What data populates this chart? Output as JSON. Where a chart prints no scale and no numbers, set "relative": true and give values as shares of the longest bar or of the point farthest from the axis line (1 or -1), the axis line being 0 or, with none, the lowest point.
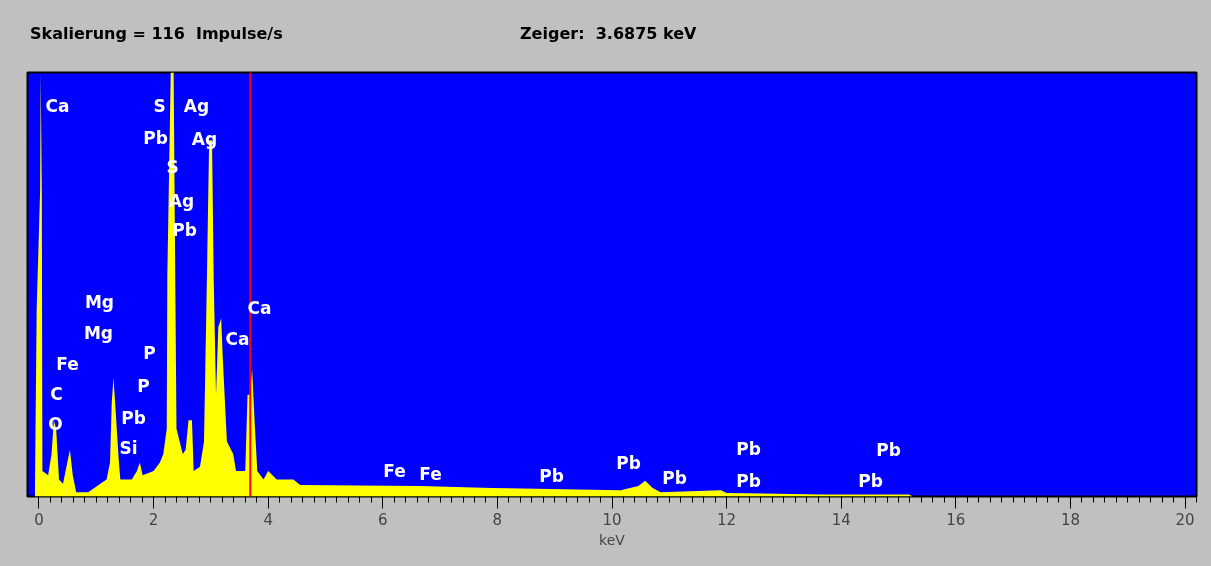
{
  "chart_data": {
    "type": "area",
    "relative": true,
    "xlabel": "keV",
    "xlim": [
      -0.2,
      20.2
    ],
    "xticks": [
      0,
      2,
      4,
      6,
      8,
      10,
      12,
      14,
      16,
      18,
      20
    ],
    "grid": false,
    "series": [
      {
        "color": "#ffff00",
        "x": [
          -0.07,
          -0.04,
          0.02,
          0.03,
          0.05,
          0.06,
          0.16,
          0.22,
          0.26,
          0.3,
          0.35,
          0.42,
          0.51,
          0.54,
          0.59,
          0.65,
          0.86,
          1.07,
          1.18,
          1.24,
          1.27,
          1.3,
          1.33,
          1.39,
          1.42,
          1.62,
          1.71,
          1.76,
          1.81,
          2.0,
          2.11,
          2.17,
          2.23,
          2.24,
          2.3,
          2.35,
          2.38,
          2.4,
          2.51,
          2.56,
          2.61,
          2.67,
          2.7,
          2.81,
          2.88,
          2.93,
          2.97,
          3.02,
          3.05,
          3.09,
          3.13,
          3.18,
          3.21,
          3.28,
          3.39,
          3.44,
          3.6,
          3.64,
          3.68,
          3.72,
          3.77,
          3.81,
          3.92,
          4.0,
          4.15,
          4.44,
          4.56,
          6.65,
          7.91,
          10.15,
          10.46,
          10.58,
          10.71,
          10.85,
          11.9,
          12.0,
          13.64,
          15.18,
          15.25,
          20.2
        ],
        "values": [
          0.02,
          0.44,
          0.72,
          1.0,
          0.72,
          0.06,
          0.05,
          0.1,
          0.18,
          0.16,
          0.04,
          0.03,
          0.09,
          0.11,
          0.05,
          0.01,
          0.01,
          0.03,
          0.04,
          0.08,
          0.22,
          0.28,
          0.22,
          0.09,
          0.04,
          0.04,
          0.06,
          0.08,
          0.05,
          0.06,
          0.08,
          0.1,
          0.16,
          0.52,
          1.0,
          1.0,
          0.49,
          0.16,
          0.1,
          0.11,
          0.18,
          0.18,
          0.06,
          0.07,
          0.13,
          0.51,
          0.84,
          0.84,
          0.51,
          0.24,
          0.4,
          0.42,
          0.32,
          0.13,
          0.1,
          0.06,
          0.06,
          0.24,
          0.24,
          0.3,
          0.16,
          0.06,
          0.04,
          0.06,
          0.04,
          0.04,
          0.027,
          0.025,
          0.02,
          0.015,
          0.025,
          0.037,
          0.02,
          0.01,
          0.015,
          0.008,
          0.005,
          0.005,
          0.0,
          0.0
        ]
      }
    ],
    "ref_lines": [
      {
        "axis": "x",
        "value": 3.6875,
        "color": "#ff0000"
      }
    ],
    "annotations": [
      "Skalierung = 116  Impulse/s",
      "Zeiger:  3.6875 keV",
      "Ca",
      "S",
      "Ag",
      "Pb",
      "Ag",
      "S",
      "Ag",
      "Pb",
      "Mg",
      "Mg",
      "Ca",
      "Ca",
      "Fe",
      "P",
      "P",
      "C",
      "Pb",
      "O",
      "Si",
      "Fe",
      "Fe",
      "Pb",
      "Pb",
      "Pb",
      "Pb",
      "Pb",
      "Pb",
      "Pb"
    ]
  }
}
